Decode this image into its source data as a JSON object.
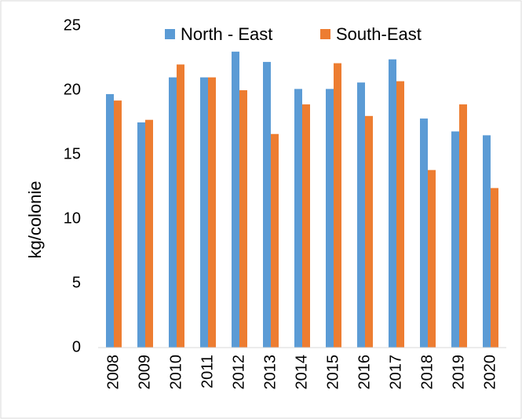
{
  "chart_data": {
    "type": "bar",
    "y_label": "kg/colonie",
    "categories": [
      "2008",
      "2009",
      "2010",
      "2011",
      "2012",
      "2013",
      "2014",
      "2015",
      "2016",
      "2017",
      "2018",
      "2019",
      "2020"
    ],
    "series": [
      {
        "name": "North - East",
        "color": "#5b9bd5",
        "values": [
          19.7,
          17.5,
          21,
          21,
          23,
          22.2,
          20.1,
          20.1,
          20.6,
          22.4,
          17.8,
          16.8,
          16.5
        ]
      },
      {
        "name": "South-East",
        "color": "#ed7d31",
        "values": [
          19.2,
          17.7,
          22,
          21,
          20,
          16.6,
          18.9,
          22.1,
          18,
          20.7,
          13.8,
          18.9,
          12.4
        ]
      }
    ],
    "ylim": [
      0,
      25
    ],
    "yticks": [
      0,
      5,
      10,
      15,
      20,
      25
    ],
    "grid": false,
    "legend": "top"
  }
}
